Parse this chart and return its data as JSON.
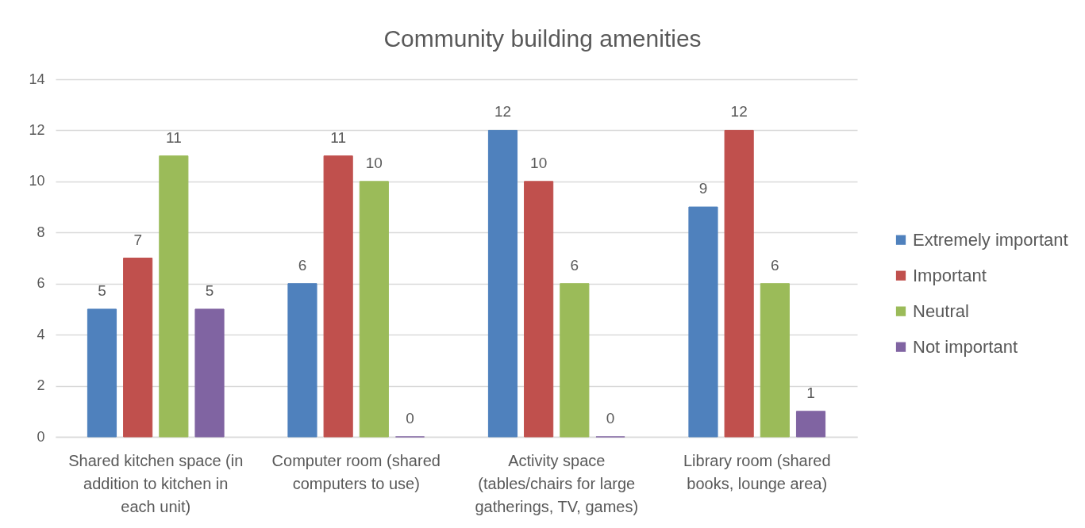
{
  "chart_data": {
    "type": "bar",
    "title": "Community building amenities",
    "categories": [
      "Shared kitchen space (in addition to kitchen in each unit)",
      "Computer room (shared computers to use)",
      "Activity space (tables/chairs for large gatherings, TV, games)",
      "Library room (shared books, lounge area)"
    ],
    "series": [
      {
        "name": "Extremely important",
        "color": "#4f81bd",
        "values": [
          5,
          6,
          12,
          9
        ]
      },
      {
        "name": "Important",
        "color": "#c0504d",
        "values": [
          7,
          11,
          10,
          12
        ]
      },
      {
        "name": "Neutral",
        "color": "#9bbb59",
        "values": [
          11,
          10,
          6,
          6
        ]
      },
      {
        "name": "Not important",
        "color": "#8064a2",
        "values": [
          5,
          0,
          0,
          1
        ]
      }
    ],
    "ylim": [
      0,
      14
    ],
    "yticks": [
      0,
      2,
      4,
      6,
      8,
      10,
      12,
      14
    ],
    "grid": "y",
    "legend": "right",
    "data_labels": true
  }
}
